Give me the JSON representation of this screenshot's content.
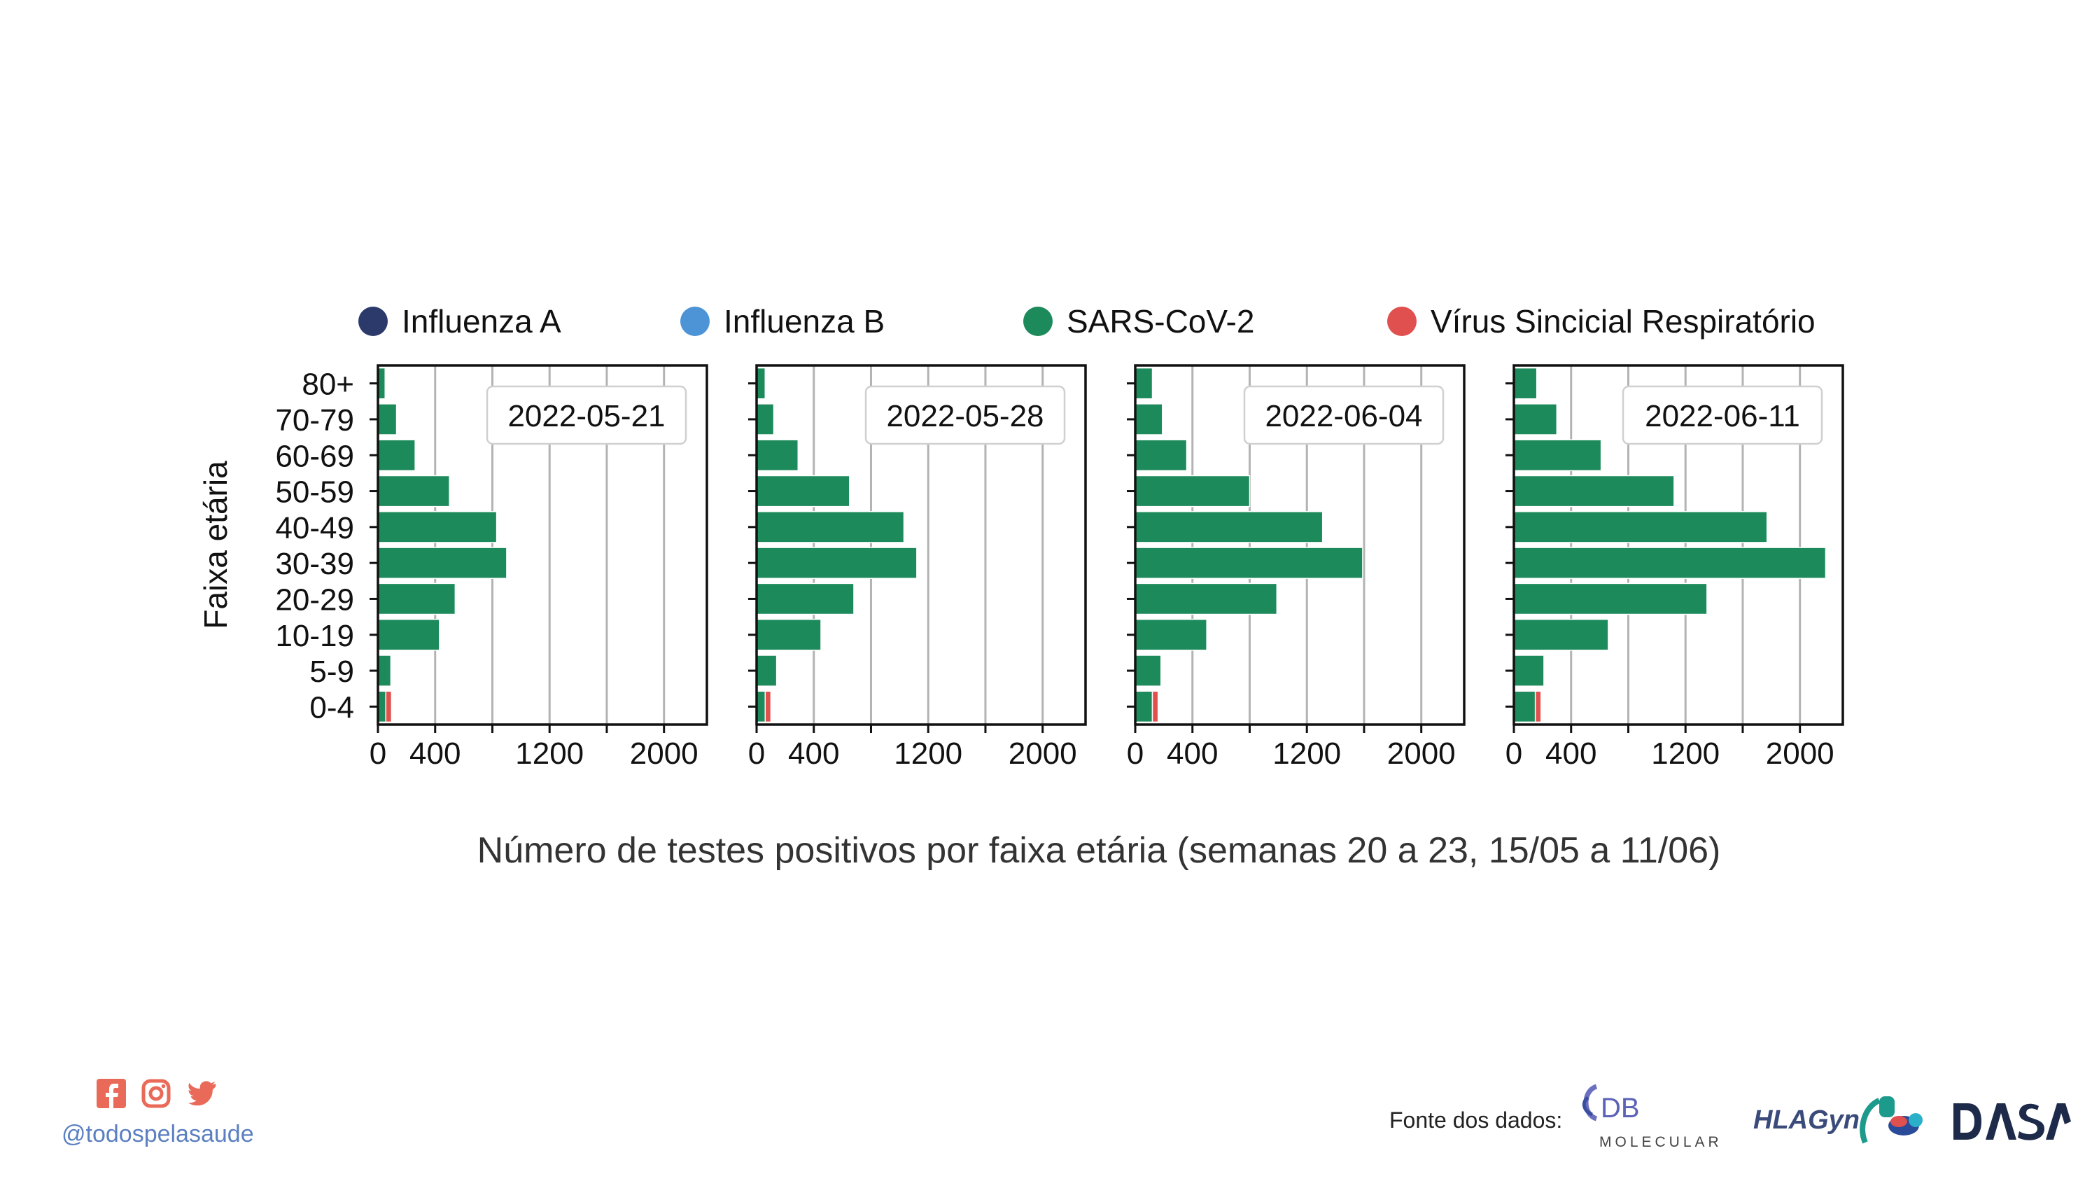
{
  "colors": {
    "influenza_a": "#2b3a6b",
    "influenza_b": "#4d94d6",
    "sars_cov_2": "#1c8a5a",
    "vsr": "#e0504f",
    "grid": "#b3b3b3",
    "accent_social": "#ea6a5a",
    "handle": "#5b7fc0"
  },
  "legend": [
    {
      "label": "Influenza A",
      "color": "#2b3a6b"
    },
    {
      "label": "Influenza B",
      "color": "#4d94d6"
    },
    {
      "label": "SARS-CoV-2",
      "color": "#1c8a5a"
    },
    {
      "label": "Vírus Sincicial Respiratório",
      "color": "#e0504f"
    }
  ],
  "caption": "Número de testes positivos por faixa etária (semanas 20 a 23, 15/05 a 11/06)",
  "footer": {
    "handle": "@todospelasaude",
    "source_label": "Fonte dos dados:",
    "social_icons": [
      "facebook-icon",
      "instagram-icon",
      "twitter-icon"
    ],
    "logos": {
      "db_letters": "DB",
      "db_sub": "MOLECULAR",
      "hlagyn": "HLAGyn.",
      "dasa": "DASA"
    }
  },
  "chart_data": {
    "type": "bar",
    "orientation": "horizontal",
    "stacked": true,
    "ylabel": "Faixa etária",
    "categories": [
      "0-4",
      "5-9",
      "10-19",
      "20-29",
      "30-39",
      "40-49",
      "50-59",
      "60-69",
      "70-79",
      "80+"
    ],
    "xlim": [
      0,
      2300
    ],
    "xticks": [
      0,
      400,
      800,
      1200,
      1600,
      2000
    ],
    "xtick_labels": [
      "0",
      "400",
      "",
      "1200",
      "",
      "2000"
    ],
    "grid": "vertical",
    "series_order": [
      "Influenza A",
      "Influenza B",
      "SARS-CoV-2",
      "Vírus Sincicial Respiratório"
    ],
    "panels": [
      {
        "title": "2022-05-21",
        "series": [
          {
            "name": "Influenza A",
            "values": [
              0,
              0,
              0,
              0,
              0,
              0,
              0,
              0,
              0,
              0
            ]
          },
          {
            "name": "Influenza B",
            "values": [
              0,
              0,
              0,
              0,
              0,
              0,
              0,
              0,
              0,
              0
            ]
          },
          {
            "name": "SARS-CoV-2",
            "values": [
              55,
              90,
              430,
              540,
              900,
              830,
              500,
              260,
              130,
              50
            ]
          },
          {
            "name": "Vírus Sincicial Respiratório",
            "values": [
              40,
              0,
              0,
              0,
              0,
              0,
              0,
              0,
              0,
              0
            ]
          }
        ]
      },
      {
        "title": "2022-05-28",
        "series": [
          {
            "name": "Influenza A",
            "values": [
              0,
              0,
              0,
              0,
              0,
              0,
              0,
              0,
              0,
              0
            ]
          },
          {
            "name": "Influenza B",
            "values": [
              0,
              0,
              0,
              0,
              0,
              0,
              0,
              0,
              0,
              0
            ]
          },
          {
            "name": "SARS-CoV-2",
            "values": [
              60,
              140,
              450,
              680,
              1120,
              1030,
              650,
              290,
              120,
              60
            ]
          },
          {
            "name": "Vírus Sincicial Respiratório",
            "values": [
              40,
              0,
              0,
              0,
              0,
              0,
              0,
              0,
              0,
              0
            ]
          }
        ]
      },
      {
        "title": "2022-06-04",
        "series": [
          {
            "name": "Influenza A",
            "values": [
              0,
              0,
              0,
              0,
              0,
              0,
              0,
              0,
              0,
              0
            ]
          },
          {
            "name": "Influenza B",
            "values": [
              0,
              0,
              0,
              0,
              0,
              0,
              0,
              0,
              0,
              0
            ]
          },
          {
            "name": "SARS-CoV-2",
            "values": [
              120,
              180,
              500,
              990,
              1590,
              1310,
              800,
              360,
              190,
              120
            ]
          },
          {
            "name": "Vírus Sincicial Respiratório",
            "values": [
              40,
              0,
              0,
              0,
              0,
              0,
              0,
              0,
              0,
              0
            ]
          }
        ]
      },
      {
        "title": "2022-06-11",
        "series": [
          {
            "name": "Influenza A",
            "values": [
              0,
              0,
              0,
              0,
              0,
              0,
              0,
              0,
              0,
              0
            ]
          },
          {
            "name": "Influenza B",
            "values": [
              0,
              0,
              0,
              0,
              0,
              0,
              0,
              0,
              0,
              0
            ]
          },
          {
            "name": "SARS-CoV-2",
            "values": [
              150,
              210,
              660,
              1350,
              2180,
              1770,
              1120,
              610,
              300,
              160
            ]
          },
          {
            "name": "Vírus Sincicial Respiratório",
            "values": [
              40,
              0,
              0,
              0,
              0,
              0,
              0,
              0,
              0,
              0
            ]
          }
        ]
      }
    ]
  }
}
